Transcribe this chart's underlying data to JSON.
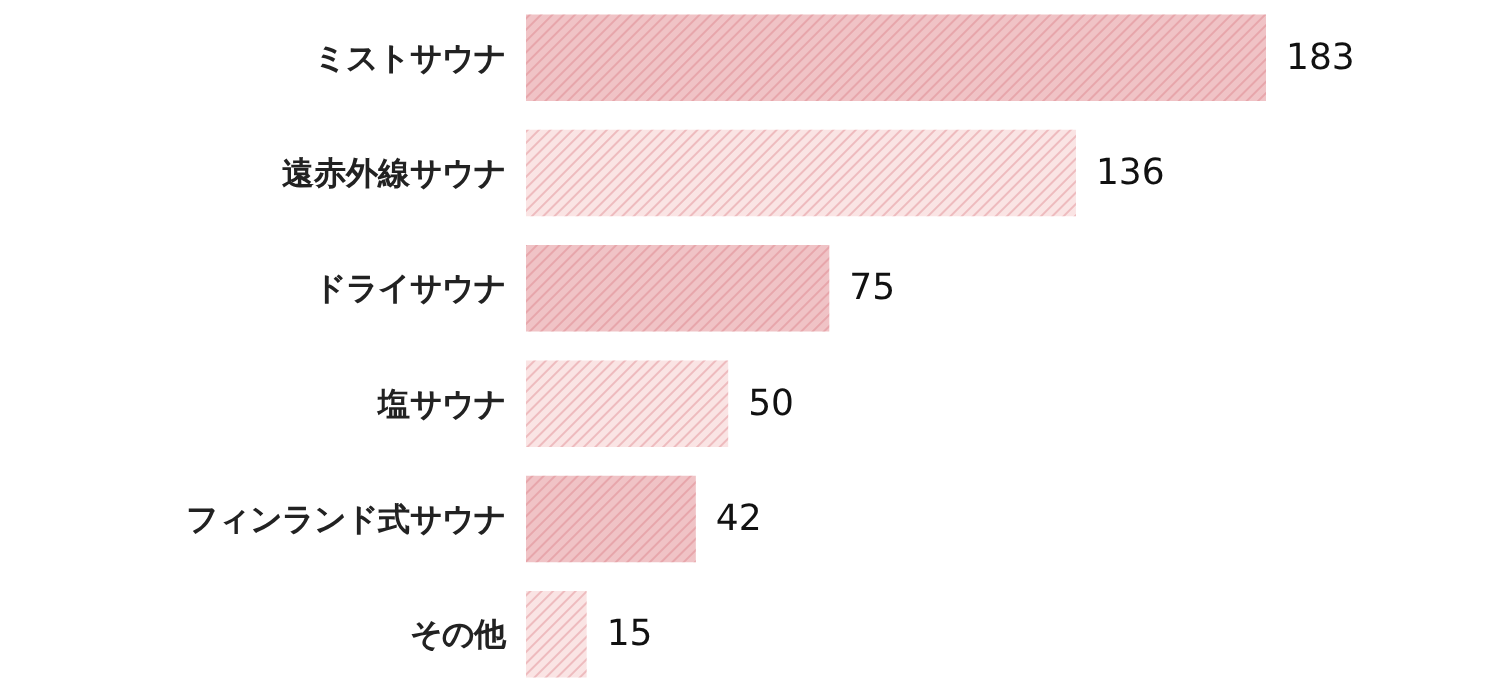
{
  "chart_data": {
    "type": "bar",
    "orientation": "horizontal",
    "categories": [
      "ミストサウナ",
      "遠赤外線サウナ",
      "ドライサウナ",
      "塩サウナ",
      "フィンランド式サウナ",
      "その他"
    ],
    "values": [
      183,
      136,
      75,
      50,
      42,
      15
    ],
    "colors": [
      "#f0c3c6",
      "#fae4e4",
      "#f0c3c6",
      "#fae4e4",
      "#f0c3c6",
      "#fae4e4"
    ],
    "data_labels": true
  }
}
